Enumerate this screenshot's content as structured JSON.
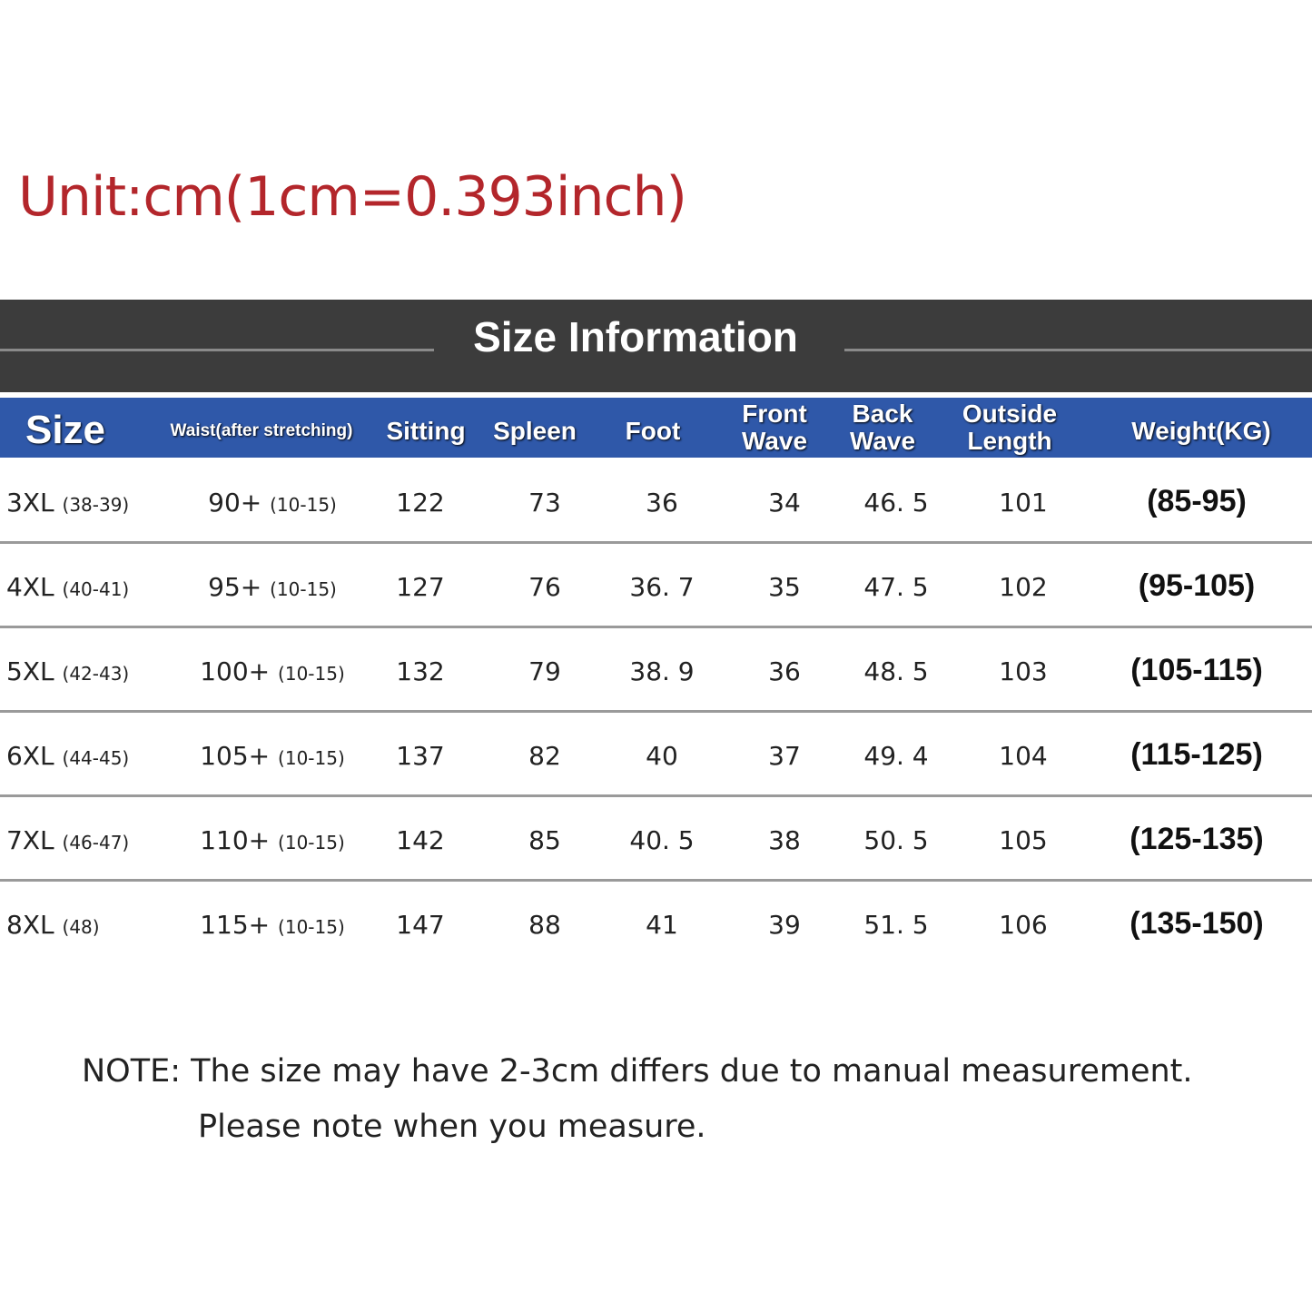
{
  "unit_title": "Unit:cm(1cm=0.393inch)",
  "section_title": "Size Information",
  "colors": {
    "unit_text": "#b3262b",
    "title_band": "#3c3c3c",
    "header_band": "#2f58a9"
  },
  "headers": [
    "Size",
    "Waist(after stretching)",
    "Sitting",
    "Spleen",
    "Foot",
    "Front Wave",
    "Back Wave",
    "Outside Length",
    "Weight(KG)"
  ],
  "rows": [
    {
      "size": "3XL",
      "size_sub": "(38-39)",
      "waist": "90+",
      "waist_sub": "(10-15)",
      "sitting": "122",
      "spleen": "73",
      "foot": "36",
      "front": "34",
      "back": "46. 5",
      "outside": "101",
      "weight": "(85-95)"
    },
    {
      "size": "4XL",
      "size_sub": "(40-41)",
      "waist": "95+",
      "waist_sub": "(10-15)",
      "sitting": "127",
      "spleen": "76",
      "foot": "36. 7",
      "front": "35",
      "back": "47. 5",
      "outside": "102",
      "weight": "(95-105)"
    },
    {
      "size": "5XL",
      "size_sub": "(42-43)",
      "waist": "100+",
      "waist_sub": "(10-15)",
      "sitting": "132",
      "spleen": "79",
      "foot": "38. 9",
      "front": "36",
      "back": "48. 5",
      "outside": "103",
      "weight": "(105-115)"
    },
    {
      "size": "6XL",
      "size_sub": "(44-45)",
      "waist": "105+",
      "waist_sub": "(10-15)",
      "sitting": "137",
      "spleen": "82",
      "foot": "40",
      "front": "37",
      "back": "49. 4",
      "outside": "104",
      "weight": "(115-125)"
    },
    {
      "size": "7XL",
      "size_sub": "(46-47)",
      "waist": "110+",
      "waist_sub": "(10-15)",
      "sitting": "142",
      "spleen": "85",
      "foot": "40. 5",
      "front": "38",
      "back": "50. 5",
      "outside": "105",
      "weight": "(125-135)"
    },
    {
      "size": "8XL",
      "size_sub": "(48)",
      "waist": "115+",
      "waist_sub": "(10-15)",
      "sitting": "147",
      "spleen": "88",
      "foot": "41",
      "front": "39",
      "back": "51. 5",
      "outside": "106",
      "weight": "(135-150)"
    }
  ],
  "note": {
    "line1": "NOTE: The size may have 2-3cm differs due to manual measurement.",
    "line2": "Please note when you measure."
  }
}
